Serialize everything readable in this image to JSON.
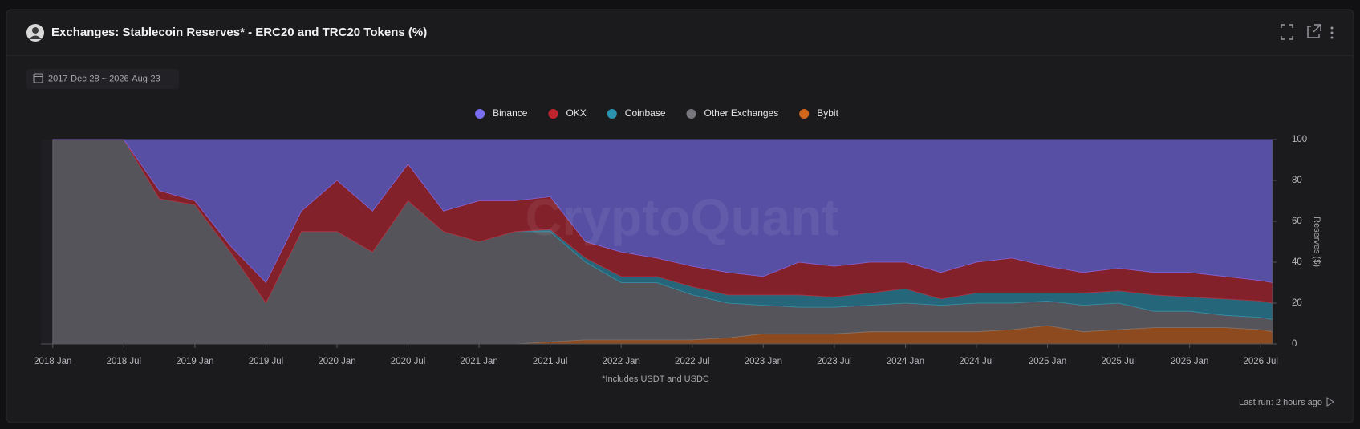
{
  "chart_data": {
    "type": "stacked-area",
    "title": "Exchanges: Stablecoin Reserves* - ERC20 and TRC20 Tokens (%)",
    "date_range": "2017-Dec-28 ~ 2026-Aug-23",
    "watermark": "CryptoQuant",
    "footnote": "*Includes USDT and USDC",
    "status": "Last run: 2 hours ago",
    "y_label": "Reserves ($)",
    "x": [
      "2018-01",
      "2018-04",
      "2018-07",
      "2018-10",
      "2019-01",
      "2019-04",
      "2019-07",
      "2019-10",
      "2020-01",
      "2020-04",
      "2020-07",
      "2020-10",
      "2021-01",
      "2021-04",
      "2021-07",
      "2021-10",
      "2022-01",
      "2022-04",
      "2022-07",
      "2022-10",
      "2023-01",
      "2023-04",
      "2023-07",
      "2023-10",
      "2024-01",
      "2024-04",
      "2024-07",
      "2024-10",
      "2025-01",
      "2025-04",
      "2025-07",
      "2025-10",
      "2026-01",
      "2026-04",
      "2026-07",
      "2026-08"
    ],
    "series": [
      {
        "name": "Binance",
        "color": "#7a6ef2",
        "values": [
          0,
          0,
          0,
          25,
          30,
          52,
          70,
          35,
          20,
          35,
          12,
          35,
          30,
          30,
          28,
          50,
          55,
          58,
          62,
          65,
          67,
          60,
          62,
          60,
          60,
          65,
          60,
          58,
          62,
          65,
          63,
          65,
          65,
          67,
          69,
          70
        ]
      },
      {
        "name": "OKX",
        "color": "#c0242f",
        "values": [
          0,
          0,
          0,
          4,
          2,
          3,
          10,
          10,
          25,
          20,
          18,
          10,
          20,
          15,
          16,
          8,
          12,
          9,
          10,
          11,
          9,
          16,
          15,
          15,
          13,
          13,
          15,
          17,
          13,
          10,
          11,
          11,
          12,
          11,
          10,
          10
        ]
      },
      {
        "name": "Coinbase",
        "color": "#2b93b0",
        "values": [
          0,
          0,
          0,
          0,
          0,
          0,
          0,
          0,
          0,
          0,
          0,
          0,
          0,
          0,
          1,
          2,
          3,
          3,
          4,
          4,
          5,
          6,
          5,
          6,
          7,
          3,
          5,
          5,
          4,
          6,
          6,
          8,
          7,
          8,
          8,
          8
        ]
      },
      {
        "name": "Other Exchanges",
        "color": "#76767c",
        "values": [
          100,
          100,
          100,
          71,
          68,
          45,
          20,
          55,
          55,
          45,
          70,
          55,
          50,
          55,
          54,
          38,
          28,
          28,
          22,
          17,
          14,
          13,
          13,
          13,
          14,
          13,
          14,
          13,
          12,
          13,
          13,
          8,
          8,
          6,
          6,
          6
        ]
      },
      {
        "name": "Bybit",
        "color": "#d2661b",
        "values": [
          0,
          0,
          0,
          0,
          0,
          0,
          0,
          0,
          0,
          0,
          0,
          0,
          0,
          0,
          1,
          2,
          2,
          2,
          2,
          3,
          5,
          5,
          5,
          6,
          6,
          6,
          6,
          7,
          9,
          6,
          7,
          8,
          8,
          8,
          7,
          6
        ]
      }
    ],
    "stack_order": [
      "Bybit",
      "Other Exchanges",
      "Coinbase",
      "OKX",
      "Binance"
    ],
    "xlim": [
      "2017-12",
      "2026-08"
    ],
    "xticks": [
      {
        "value": "2018-01",
        "label": "2018 Jan"
      },
      {
        "value": "2018-07",
        "label": "2018 Jul"
      },
      {
        "value": "2019-01",
        "label": "2019 Jan"
      },
      {
        "value": "2019-07",
        "label": "2019 Jul"
      },
      {
        "value": "2020-01",
        "label": "2020 Jan"
      },
      {
        "value": "2020-07",
        "label": "2020 Jul"
      },
      {
        "value": "2021-01",
        "label": "2021 Jan"
      },
      {
        "value": "2021-07",
        "label": "2021 Jul"
      },
      {
        "value": "2022-01",
        "label": "2022 Jan"
      },
      {
        "value": "2022-07",
        "label": "2022 Jul"
      },
      {
        "value": "2023-01",
        "label": "2023 Jan"
      },
      {
        "value": "2023-07",
        "label": "2023 Jul"
      },
      {
        "value": "2024-01",
        "label": "2024 Jan"
      },
      {
        "value": "2024-07",
        "label": "2024 Jul"
      },
      {
        "value": "2025-01",
        "label": "2025 Jan"
      },
      {
        "value": "2025-07",
        "label": "2025 Jul"
      },
      {
        "value": "2026-01",
        "label": "2026 Jan"
      },
      {
        "value": "2026-07",
        "label": "2026 Jul"
      }
    ],
    "ylim": [
      0,
      100
    ],
    "yticks": [
      0,
      20,
      40,
      60,
      80,
      100
    ],
    "y_axis_side": "right",
    "grid": false
  }
}
